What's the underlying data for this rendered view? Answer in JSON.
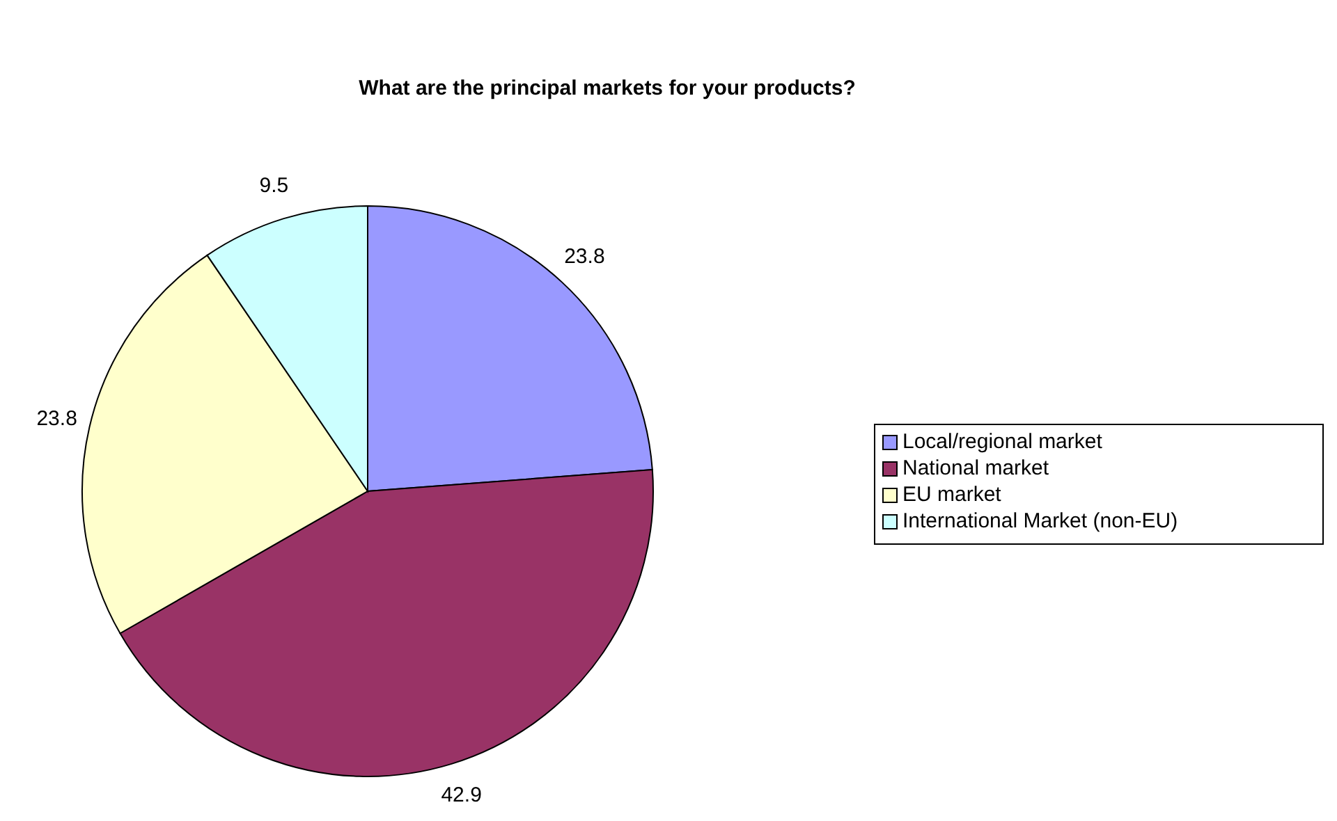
{
  "chart_data": {
    "type": "pie",
    "title": "What are the principal markets for your products?",
    "categories": [
      "Local/regional market",
      "National market",
      "EU market",
      "International Market (non-EU)"
    ],
    "values": [
      23.8,
      42.9,
      23.8,
      9.5
    ],
    "colors": [
      "#9999ff",
      "#993366",
      "#ffffcc",
      "#ccffff"
    ],
    "data_labels": true,
    "legend": "right"
  }
}
